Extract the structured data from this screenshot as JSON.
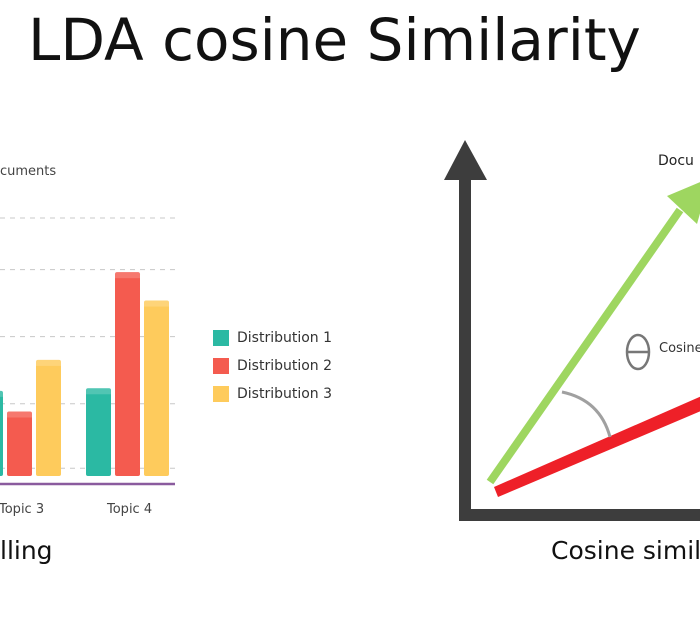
{
  "title": "LDA cosine Similarity",
  "left_panel": {
    "caption": "lling",
    "chart_data": {
      "type": "bar",
      "categories": [
        "Topic 3",
        "Topic 4"
      ],
      "series": [
        {
          "name": "Distribution 1",
          "values": [
            33,
            34
          ],
          "color": "#2bb9a3"
        },
        {
          "name": "Distribution 2",
          "values": [
            25,
            79
          ],
          "color": "#f45b4f"
        },
        {
          "name": "Distribution 3",
          "values": [
            45,
            68
          ],
          "color": "#fecb5c"
        }
      ],
      "ylabel": "cuments",
      "ylim": [
        0,
        100
      ],
      "grid": true,
      "legend_position": "right"
    }
  },
  "right_panel": {
    "caption": "Cosine simila",
    "document_label": "Docu",
    "angle_symbol": "Θ",
    "angle_label": "Cosine",
    "colors": {
      "axis": "#3d3d3d",
      "vector_a": "#9ed660",
      "vector_b": "#ee2028",
      "arc": "#a0a0a0"
    }
  }
}
